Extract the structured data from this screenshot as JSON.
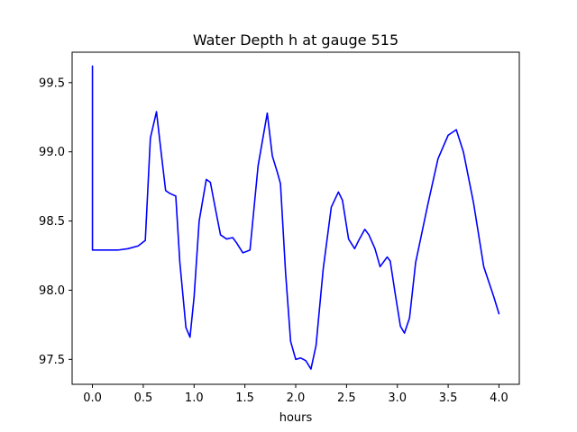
{
  "chart_data": {
    "type": "line",
    "title": "Water Depth h at gauge 515",
    "xlabel": "hours",
    "ylabel": "",
    "xlim": [
      -0.2,
      4.2
    ],
    "ylim": [
      97.32,
      99.72
    ],
    "xticks": [
      0.0,
      0.5,
      1.0,
      1.5,
      2.0,
      2.5,
      3.0,
      3.5,
      4.0
    ],
    "xtick_labels": [
      "0.0",
      "0.5",
      "1.0",
      "1.5",
      "2.0",
      "2.5",
      "3.0",
      "3.5",
      "4.0"
    ],
    "yticks": [
      97.5,
      98.0,
      98.5,
      99.0,
      99.5
    ],
    "ytick_labels": [
      "97.5",
      "98.0",
      "98.5",
      "99.0",
      "99.5"
    ],
    "grid": false,
    "series": [
      {
        "color": "#0000ff",
        "x": [
          0.0,
          0.0,
          0.1,
          0.25,
          0.35,
          0.45,
          0.52,
          0.57,
          0.63,
          0.68,
          0.72,
          0.76,
          0.82,
          0.86,
          0.92,
          0.96,
          1.0,
          1.05,
          1.12,
          1.16,
          1.22,
          1.26,
          1.32,
          1.38,
          1.42,
          1.48,
          1.55,
          1.63,
          1.72,
          1.77,
          1.82,
          1.85,
          1.9,
          1.95,
          2.0,
          2.05,
          2.1,
          2.15,
          2.2,
          2.27,
          2.35,
          2.42,
          2.46,
          2.52,
          2.58,
          2.62,
          2.68,
          2.72,
          2.78,
          2.83,
          2.9,
          2.93,
          2.98,
          3.03,
          3.07,
          3.12,
          3.18,
          3.3,
          3.4,
          3.5,
          3.58,
          3.65,
          3.75,
          3.85,
          3.95,
          4.0
        ],
        "y": [
          99.62,
          98.29,
          98.29,
          98.29,
          98.3,
          98.32,
          98.36,
          99.1,
          99.29,
          98.97,
          98.72,
          98.7,
          98.68,
          98.2,
          97.73,
          97.66,
          97.95,
          98.5,
          98.8,
          98.78,
          98.55,
          98.4,
          98.37,
          98.38,
          98.34,
          98.27,
          98.29,
          98.9,
          99.28,
          98.97,
          98.85,
          98.77,
          98.13,
          97.63,
          97.5,
          97.51,
          97.49,
          97.43,
          97.6,
          98.15,
          98.6,
          98.71,
          98.65,
          98.37,
          98.3,
          98.36,
          98.44,
          98.4,
          98.3,
          98.17,
          98.24,
          98.21,
          97.97,
          97.74,
          97.69,
          97.8,
          98.2,
          98.62,
          98.95,
          99.12,
          99.16,
          99.0,
          98.63,
          98.17,
          97.95,
          97.83
        ]
      }
    ]
  }
}
